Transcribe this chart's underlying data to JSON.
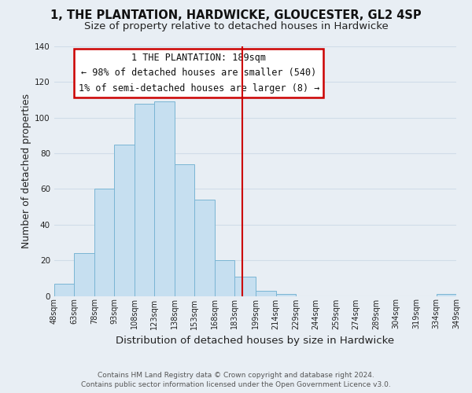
{
  "title": "1, THE PLANTATION, HARDWICKE, GLOUCESTER, GL2 4SP",
  "subtitle": "Size of property relative to detached houses in Hardwicke",
  "xlabel": "Distribution of detached houses by size in Hardwicke",
  "ylabel": "Number of detached properties",
  "bar_edges": [
    48,
    63,
    78,
    93,
    108,
    123,
    138,
    153,
    168,
    183,
    199,
    214,
    229,
    244,
    259,
    274,
    289,
    304,
    319,
    334,
    349
  ],
  "bar_heights": [
    7,
    24,
    60,
    85,
    108,
    109,
    74,
    54,
    20,
    11,
    3,
    1,
    0,
    0,
    0,
    0,
    0,
    0,
    0,
    1
  ],
  "bar_color": "#c6dff0",
  "bar_edge_color": "#7ab5d4",
  "ylim": [
    0,
    140
  ],
  "xlim": [
    48,
    349
  ],
  "reference_line_x": 189,
  "reference_line_color": "#cc0000",
  "annotation_line1": "1 THE PLANTATION: 189sqm",
  "annotation_line2": "← 98% of detached houses are smaller (540)",
  "annotation_line3": "1% of semi-detached houses are larger (8) →",
  "annotation_box_color": "#cc0000",
  "footer_line1": "Contains HM Land Registry data © Crown copyright and database right 2024.",
  "footer_line2": "Contains public sector information licensed under the Open Government Licence v3.0.",
  "tick_labels": [
    "48sqm",
    "63sqm",
    "78sqm",
    "93sqm",
    "108sqm",
    "123sqm",
    "138sqm",
    "153sqm",
    "168sqm",
    "183sqm",
    "199sqm",
    "214sqm",
    "229sqm",
    "244sqm",
    "259sqm",
    "274sqm",
    "289sqm",
    "304sqm",
    "319sqm",
    "334sqm",
    "349sqm"
  ],
  "yticks": [
    0,
    20,
    40,
    60,
    80,
    100,
    120,
    140
  ],
  "background_color": "#e8eef4",
  "grid_color": "#d0dce8",
  "title_fontsize": 10.5,
  "subtitle_fontsize": 9.5,
  "axis_label_fontsize": 9,
  "tick_fontsize": 7,
  "annotation_fontsize": 8.5,
  "footer_fontsize": 6.5
}
